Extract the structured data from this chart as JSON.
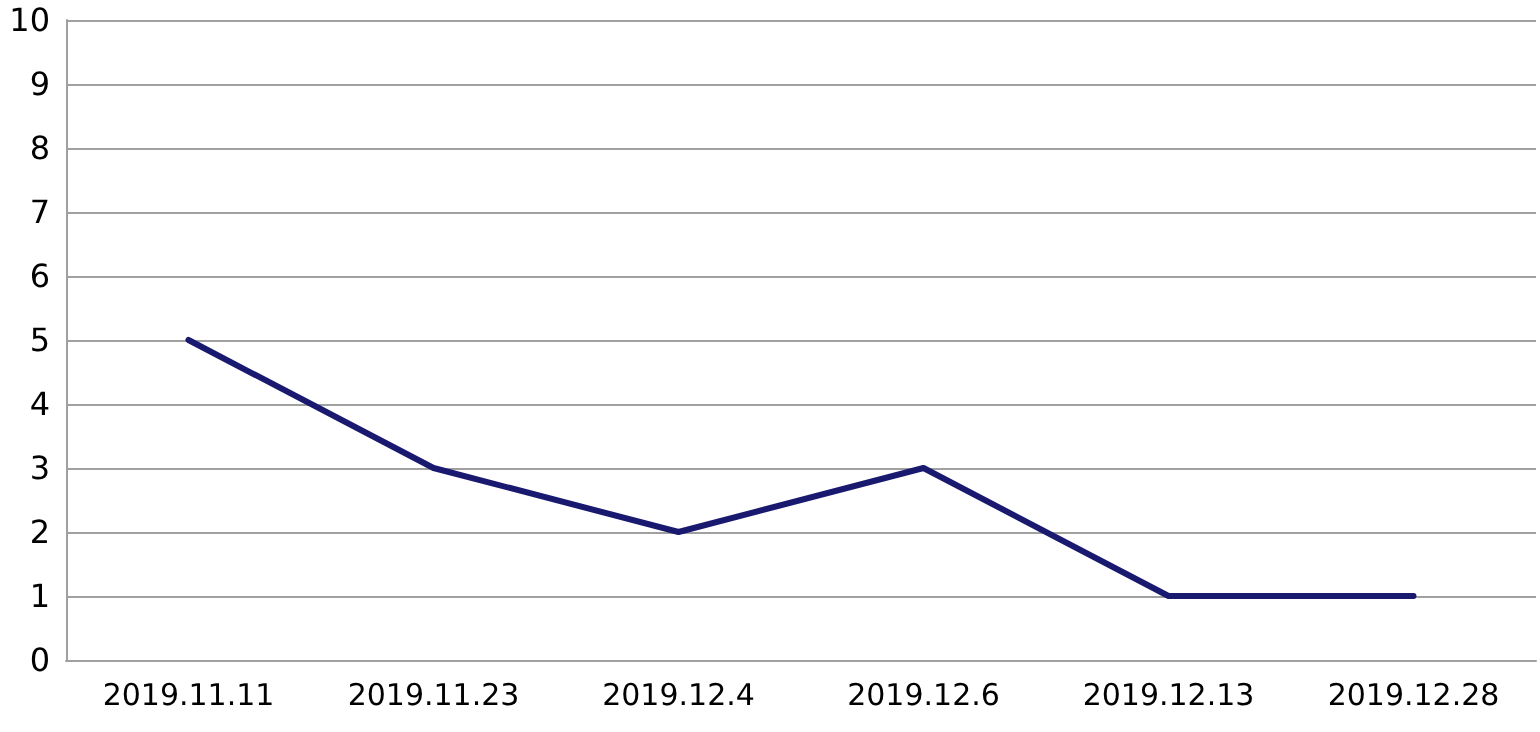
{
  "chart_data": {
    "type": "line",
    "categories": [
      "2019.11.11",
      "2019.11.23",
      "2019.12.4",
      "2019.12.6",
      "2019.12.13",
      "2019.12.28"
    ],
    "series": [
      {
        "color": "#191970",
        "values": [
          5,
          3,
          2,
          3,
          1,
          1
        ]
      }
    ],
    "ylim": [
      0,
      10
    ],
    "yticks": [
      0,
      1,
      2,
      3,
      4,
      5,
      6,
      7,
      8,
      9,
      10
    ],
    "grid": "y",
    "marker": "none",
    "line_style": "solid"
  }
}
